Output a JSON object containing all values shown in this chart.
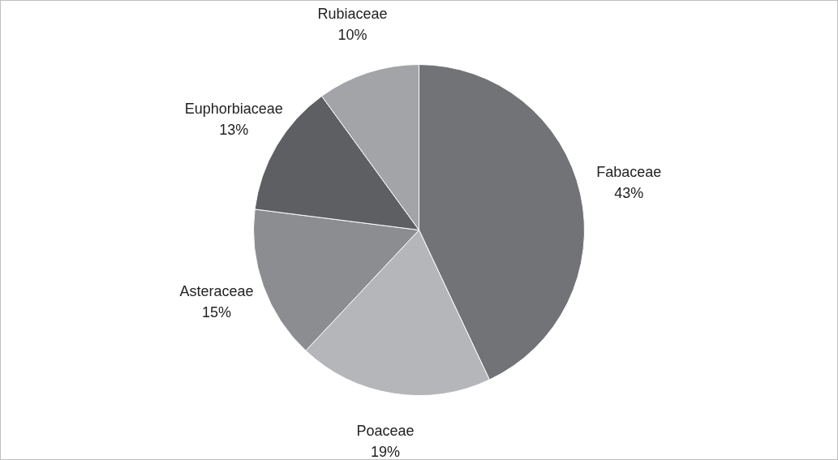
{
  "chart_data": {
    "type": "pie",
    "categories": [
      "Fabaceae",
      "Poaceae",
      "Asteraceae",
      "Euphorbiaceae",
      "Rubiaceae"
    ],
    "values": [
      43,
      19,
      15,
      13,
      10
    ],
    "colors": [
      "#727376",
      "#b5b6b9",
      "#8c8d90",
      "#5e5f62",
      "#a3a4a7"
    ],
    "value_labels": [
      "43%",
      "19%",
      "15%",
      "13%",
      "10%"
    ],
    "legend": false
  }
}
